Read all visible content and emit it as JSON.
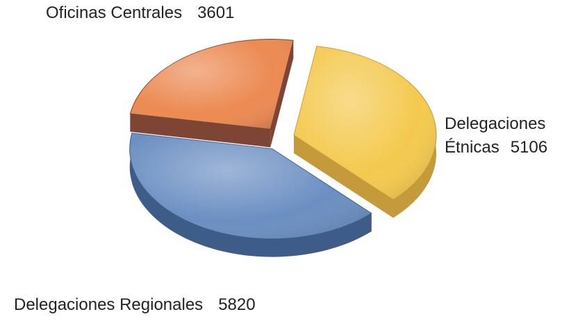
{
  "chart_data": {
    "type": "pie",
    "categories": [
      "Oficinas Centrales",
      "Delegaciones Étnicas",
      "Delegaciones Regionales"
    ],
    "values": [
      3601,
      5106,
      5820
    ],
    "colors": [
      "#ec8a52",
      "#f4c94e",
      "#6b8fc2"
    ],
    "side_colors": [
      "#7e4434",
      "#c49a3a",
      "#3e5c88"
    ],
    "three_d": true,
    "exploded": true
  }
}
